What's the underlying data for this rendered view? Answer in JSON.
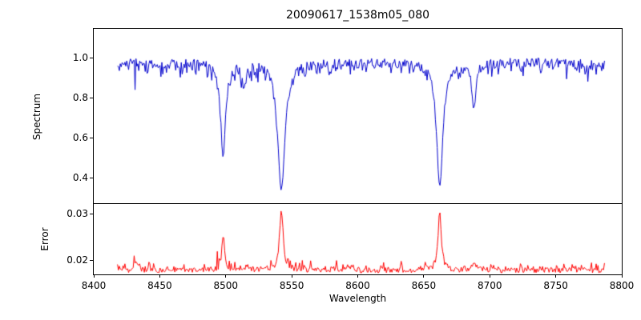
{
  "chart_data": {
    "type": "line",
    "title": "20090617_1538m05_080",
    "xlabel": "Wavelength",
    "xlim": [
      8400,
      8800
    ],
    "x_range": [
      8418,
      8787
    ],
    "x_ticks": [
      {
        "v": 8400,
        "label": "8400"
      },
      {
        "v": 8450,
        "label": "8450"
      },
      {
        "v": 8500,
        "label": "8500"
      },
      {
        "v": 8550,
        "label": "8550"
      },
      {
        "v": 8600,
        "label": "8600"
      },
      {
        "v": 8650,
        "label": "8650"
      },
      {
        "v": 8700,
        "label": "8700"
      },
      {
        "v": 8750,
        "label": "8750"
      },
      {
        "v": 8800,
        "label": "8800"
      }
    ],
    "legend": "none",
    "grid": false,
    "panels": [
      {
        "name": "spectrum",
        "ylabel": "Spectrum",
        "ylim": [
          0.268,
          1.144
        ],
        "y_ticks": [
          {
            "v": 0.4,
            "label": "0.4"
          },
          {
            "v": 0.6,
            "label": "0.6"
          },
          {
            "v": 0.8,
            "label": "0.8"
          },
          {
            "v": 1.0,
            "label": "1.0"
          }
        ],
        "color": "#0000cc",
        "continuum": 0.975,
        "noise_amplitude": 0.05,
        "absorption_lines": [
          {
            "center": 8498.0,
            "depth": 0.48,
            "width": 2.2
          },
          {
            "center": 8514.0,
            "depth": 0.13,
            "width": 1.5
          },
          {
            "center": 8542.1,
            "depth": 0.655,
            "width": 3.2
          },
          {
            "center": 8662.1,
            "depth": 0.64,
            "width": 2.8
          },
          {
            "center": 8688.0,
            "depth": 0.24,
            "width": 1.6
          }
        ]
      },
      {
        "name": "error",
        "ylabel": "Error",
        "ylim": [
          0.0169,
          0.0321
        ],
        "y_ticks": [
          {
            "v": 0.02,
            "label": "0.02"
          },
          {
            "v": 0.03,
            "label": "0.03"
          }
        ],
        "color": "#ff0000",
        "baseline": 0.0178,
        "noise_amplitude": 0.0012,
        "peaks": [
          {
            "center": 8432.0,
            "height": 0.002,
            "width": 1.2
          },
          {
            "center": 8498.0,
            "height": 0.0068,
            "width": 1.3
          },
          {
            "center": 8516.0,
            "height": 0.0012,
            "width": 1.0
          },
          {
            "center": 8542.1,
            "height": 0.0132,
            "width": 1.6
          },
          {
            "center": 8662.1,
            "height": 0.0124,
            "width": 1.5
          },
          {
            "center": 8688.0,
            "height": 0.0018,
            "width": 1.2
          }
        ]
      }
    ]
  }
}
